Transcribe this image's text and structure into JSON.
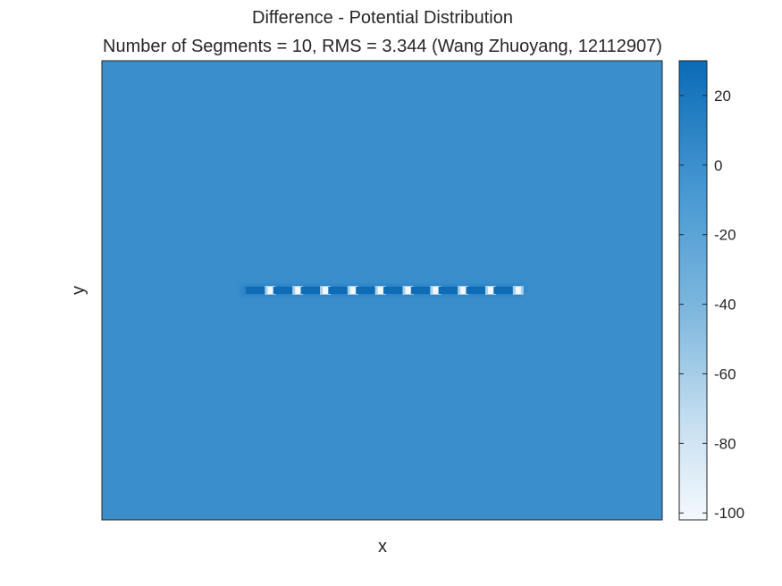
{
  "chart_data": {
    "type": "heatmap",
    "title": "Difference - Potential Distribution",
    "subtitle": "Number of Segments = 10, RMS = 3.344 (Wang Zhuoyang, 12112907)",
    "xlabel": "x",
    "ylabel": "y",
    "background_value": 0,
    "colorbar": {
      "min": -102,
      "max": 30,
      "ticks": [
        20,
        0,
        -20,
        -40,
        -60,
        -80,
        -100
      ],
      "tick_labels": [
        "20",
        "0",
        "-20",
        "-40",
        "-60",
        "-80",
        "-100"
      ],
      "colormap": [
        "#ffffff",
        "#c7dff0",
        "#6fb0db",
        "#3f95d0",
        "#2f88cb",
        "#0c6db8"
      ]
    },
    "segments": {
      "count": 10,
      "line_value": 12,
      "gap_value": -100,
      "gap_positions": [
        1,
        2,
        3,
        4,
        5,
        6,
        7,
        8,
        9,
        10
      ]
    },
    "grid": false,
    "xticks": [],
    "yticks": []
  }
}
